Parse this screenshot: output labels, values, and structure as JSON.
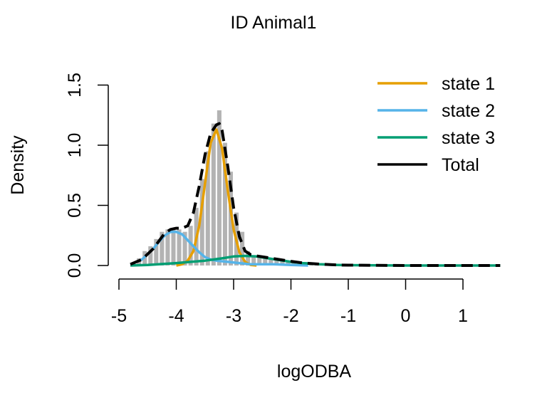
{
  "chart_data": {
    "type": "histogram",
    "title": "ID Animal1",
    "xlabel": "logODBA",
    "ylabel": "Density",
    "xlim": [
      -4.9,
      1.7
    ],
    "ylim": [
      0,
      1.5
    ],
    "x_ticks": [
      -5,
      -4,
      -3,
      -2,
      -1,
      0,
      1
    ],
    "x_tick_labels": [
      "-5",
      "-4",
      "-3",
      "-2",
      "-1",
      "0",
      "1"
    ],
    "y_ticks": [
      0,
      0.5,
      1,
      1.5
    ],
    "y_tick_labels": [
      "0.0",
      "0.5",
      "1.0",
      "1.5"
    ],
    "legend_position": "top-right",
    "histogram": {
      "bin_width": 0.1,
      "bin_starts": [
        -4.8,
        -4.7,
        -4.6,
        -4.5,
        -4.4,
        -4.3,
        -4.2,
        -4.1,
        -4.0,
        -3.9,
        -3.8,
        -3.7,
        -3.6,
        -3.5,
        -3.4,
        -3.3,
        -3.2,
        -3.1,
        -3.0,
        -2.9,
        -2.8,
        -2.7,
        -2.6,
        -2.5,
        -2.4,
        -2.3,
        -2.2,
        -2.1,
        -2.0,
        -1.9,
        -1.8,
        -1.7,
        -1.6,
        -1.5,
        -1.4,
        -1.3,
        -1.2,
        -1.1,
        -1.0,
        -0.9,
        -0.8
      ],
      "densities": [
        0.02,
        0.06,
        0.12,
        0.16,
        0.22,
        0.28,
        0.3,
        0.31,
        0.3,
        0.28,
        0.33,
        0.48,
        0.72,
        0.95,
        1.18,
        1.29,
        1.02,
        0.78,
        0.44,
        0.28,
        0.12,
        0.08,
        0.07,
        0.06,
        0.05,
        0.05,
        0.04,
        0.04,
        0.03,
        0.03,
        0.03,
        0.02,
        0.02,
        0.02,
        0.01,
        0.01,
        0.01,
        0.01,
        0.01,
        0.005,
        0.005
      ],
      "color": "#b3b3b3"
    },
    "series": [
      {
        "name": "state 1",
        "color": "#e69f00",
        "x": [
          -4.0,
          -3.9,
          -3.8,
          -3.7,
          -3.6,
          -3.5,
          -3.4,
          -3.3,
          -3.2,
          -3.1,
          -3.0,
          -2.9,
          -2.8,
          -2.7,
          -2.6
        ],
        "values": [
          0.0,
          0.01,
          0.04,
          0.12,
          0.33,
          0.68,
          1.02,
          1.13,
          0.97,
          0.62,
          0.3,
          0.11,
          0.03,
          0.005,
          0.0
        ]
      },
      {
        "name": "state 2",
        "color": "#56b4e9",
        "x": [
          -4.8,
          -4.6,
          -4.4,
          -4.3,
          -4.2,
          -4.1,
          -4.0,
          -3.9,
          -3.8,
          -3.7,
          -3.6,
          -3.5,
          -3.4,
          -3.3,
          -3.1,
          -2.9,
          -2.7,
          -2.5,
          -2.3,
          -2.0,
          -1.7
        ],
        "values": [
          0.01,
          0.05,
          0.14,
          0.2,
          0.25,
          0.28,
          0.28,
          0.26,
          0.21,
          0.16,
          0.11,
          0.07,
          0.05,
          0.04,
          0.03,
          0.02,
          0.01,
          0.01,
          0.01,
          0.005,
          0.0
        ]
      },
      {
        "name": "state 3",
        "color": "#009e73",
        "x": [
          -4.8,
          -4.5,
          -4.0,
          -3.5,
          -3.2,
          -3.0,
          -2.8,
          -2.6,
          -2.4,
          -2.2,
          -2.0,
          -1.8,
          -1.5,
          -1.2,
          -1.0,
          -0.5,
          0.0,
          0.5,
          1.0,
          1.65
        ],
        "values": [
          0.0,
          0.005,
          0.02,
          0.04,
          0.06,
          0.075,
          0.08,
          0.075,
          0.06,
          0.045,
          0.03,
          0.02,
          0.01,
          0.005,
          0.003,
          0.001,
          0.0,
          0.0,
          0.0,
          0.0
        ]
      },
      {
        "name": "Total",
        "color": "#000000",
        "x": [
          -4.8,
          -4.6,
          -4.4,
          -4.2,
          -4.1,
          -4.0,
          -3.9,
          -3.8,
          -3.7,
          -3.6,
          -3.5,
          -3.4,
          -3.3,
          -3.25,
          -3.2,
          -3.1,
          -3.0,
          -2.9,
          -2.8,
          -2.7,
          -2.6,
          -2.4,
          -2.2,
          -2.0,
          -1.8,
          -1.5,
          -1.2,
          -1.0,
          -0.5,
          0.0,
          0.5,
          1.0,
          1.65
        ],
        "values": [
          0.01,
          0.05,
          0.14,
          0.27,
          0.3,
          0.31,
          0.31,
          0.33,
          0.44,
          0.66,
          0.92,
          1.1,
          1.17,
          1.18,
          1.12,
          0.82,
          0.48,
          0.24,
          0.12,
          0.09,
          0.08,
          0.065,
          0.05,
          0.035,
          0.022,
          0.011,
          0.005,
          0.003,
          0.001,
          0.0,
          0.0,
          0.0,
          0.0
        ]
      }
    ]
  }
}
